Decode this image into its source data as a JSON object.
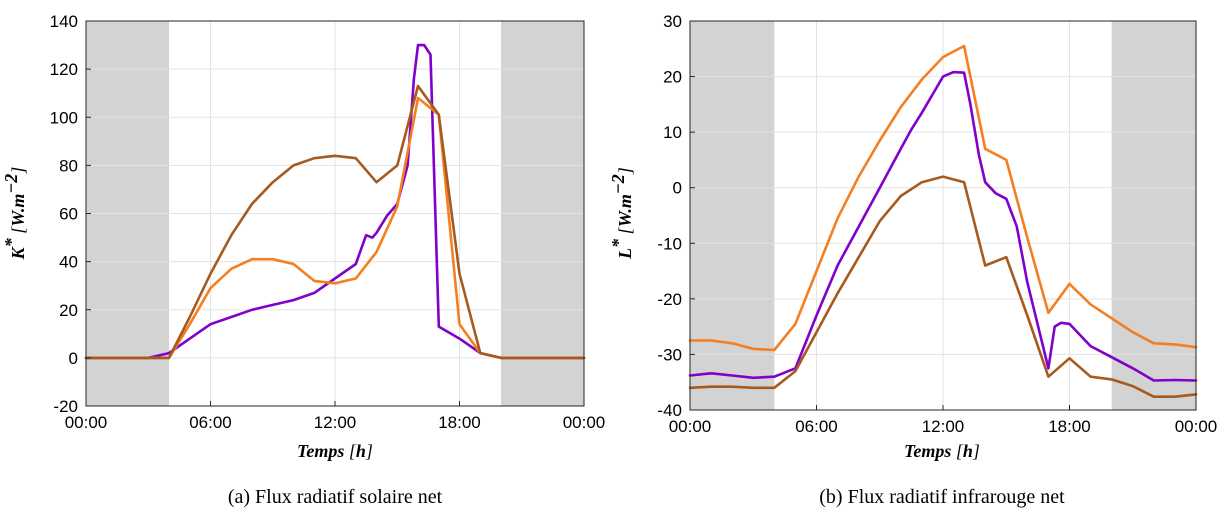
{
  "chart_data": [
    {
      "type": "line",
      "caption": "(a) Flux radiatif solaire net",
      "xlabel": "Temps [h]",
      "ylabel": "K* [W.m^-2]",
      "xlim": [
        0,
        24
      ],
      "ylim": [
        -20,
        140
      ],
      "x_ticks": [
        0,
        6,
        12,
        18,
        24
      ],
      "x_tick_labels": [
        "00:00",
        "06:00",
        "12:00",
        "18:00",
        "00:00"
      ],
      "y_ticks": [
        -20,
        0,
        20,
        40,
        60,
        80,
        100,
        120,
        140
      ],
      "y_tick_labels": [
        "-20",
        "0",
        "20",
        "40",
        "60",
        "80",
        "100",
        "120",
        "140"
      ],
      "grid": true,
      "night_shading": [
        [
          0,
          4
        ],
        [
          20,
          24
        ]
      ],
      "colors": {
        "shade": "#d3d3d3",
        "purple": "#8000cc",
        "orange": "#f57f20",
        "brown": "#a65a1e"
      },
      "series": [
        {
          "color": "#8000cc",
          "x": [
            0,
            1,
            2,
            3,
            4,
            5,
            6,
            7,
            8,
            9,
            10,
            11,
            12,
            13,
            13.5,
            13.8,
            14,
            14.5,
            15,
            15.5,
            15.8,
            16,
            16.3,
            16.6,
            17,
            18,
            18.5,
            19,
            20,
            21,
            24
          ],
          "y": [
            0,
            0,
            0,
            0,
            2,
            8,
            14,
            17,
            20,
            22,
            24,
            27,
            33,
            39,
            51,
            50,
            52,
            59,
            64,
            80,
            116,
            130,
            130,
            126,
            13,
            8,
            5,
            2,
            0,
            0,
            0
          ]
        },
        {
          "color": "#f57f20",
          "x": [
            0,
            1,
            2,
            3,
            4,
            5,
            6,
            7,
            8,
            9,
            10,
            11,
            12,
            13,
            14,
            15,
            16,
            17,
            18,
            19,
            20,
            21,
            24
          ],
          "y": [
            0,
            0,
            0,
            0,
            0,
            14,
            29,
            37,
            41,
            41,
            39,
            32,
            31,
            33,
            44,
            63,
            108,
            101,
            14,
            2,
            0,
            0,
            0
          ]
        },
        {
          "color": "#a65a1e",
          "x": [
            0,
            1,
            2,
            3,
            4,
            5,
            6,
            7,
            8,
            9,
            10,
            11,
            12,
            13,
            14,
            15,
            16,
            17,
            18,
            19,
            20,
            21,
            24
          ],
          "y": [
            0,
            0,
            0,
            0,
            0,
            17,
            35,
            51,
            64,
            73,
            80,
            83,
            84,
            83,
            73,
            80,
            113,
            101,
            35,
            2,
            0,
            0,
            0
          ]
        }
      ]
    },
    {
      "type": "line",
      "caption": "(b) Flux radiatif infrarouge net",
      "xlabel": "Temps [h]",
      "ylabel": "L* [W.m^-2]",
      "xlim": [
        0,
        24
      ],
      "ylim": [
        -40,
        30
      ],
      "x_ticks": [
        0,
        6,
        12,
        18,
        24
      ],
      "x_tick_labels": [
        "00:00",
        "06:00",
        "12:00",
        "18:00",
        "00:00"
      ],
      "y_ticks": [
        -40,
        -30,
        -20,
        -10,
        0,
        10,
        20,
        30
      ],
      "y_tick_labels": [
        "-40",
        "-30",
        "-20",
        "-10",
        "0",
        "10",
        "20",
        "30"
      ],
      "grid": true,
      "night_shading": [
        [
          0,
          4
        ],
        [
          20,
          24
        ]
      ],
      "colors": {
        "shade": "#d3d3d3",
        "purple": "#8000cc",
        "orange": "#f57f20",
        "brown": "#a65a1e"
      },
      "series": [
        {
          "color": "#f57f20",
          "x": [
            0,
            1,
            2,
            3,
            4,
            5,
            6,
            7,
            8,
            9,
            10,
            11,
            12,
            13,
            14,
            15,
            16,
            17,
            18,
            19,
            20,
            21,
            22,
            23,
            24
          ],
          "y": [
            -27.5,
            -27.5,
            -28,
            -29,
            -29.2,
            -24.5,
            -15,
            -5.5,
            2,
            8.5,
            14.5,
            19.5,
            23.5,
            25.5,
            7,
            5,
            -9,
            -22.5,
            -17.3,
            -21,
            -23.5,
            -26,
            -28,
            -28.2,
            -28.7
          ]
        },
        {
          "color": "#8000cc",
          "x": [
            0,
            1,
            2,
            3,
            4,
            5,
            6,
            7,
            8,
            9,
            10,
            10.5,
            11,
            12,
            12.5,
            13,
            13.3,
            13.7,
            14,
            14.5,
            15,
            15.5,
            16,
            17,
            17.3,
            17.6,
            18,
            19,
            20,
            21,
            22,
            23,
            24
          ],
          "y": [
            -33.8,
            -33.4,
            -33.8,
            -34.2,
            -34,
            -32.5,
            -23,
            -14,
            -7,
            0,
            7,
            10.5,
            13.5,
            20,
            20.8,
            20.7,
            15,
            6,
            1,
            -1,
            -2,
            -7,
            -17,
            -32.5,
            -25,
            -24.3,
            -24.5,
            -28.5,
            -30.5,
            -32.5,
            -34.7,
            -34.6,
            -34.7
          ]
        },
        {
          "color": "#a65a1e",
          "x": [
            0,
            1,
            2,
            3,
            4,
            5,
            6,
            7,
            8,
            9,
            10,
            11,
            12,
            13,
            14,
            15,
            16,
            17,
            18,
            19,
            20,
            21,
            22,
            23,
            24
          ],
          "y": [
            -36,
            -35.8,
            -35.8,
            -36,
            -36,
            -33,
            -26,
            -19,
            -12.5,
            -6,
            -1.5,
            1,
            2,
            1,
            -14,
            -12.5,
            -23,
            -34,
            -30.7,
            -34,
            -34.5,
            -35.7,
            -37.6,
            -37.6,
            -37.2
          ]
        }
      ]
    }
  ]
}
